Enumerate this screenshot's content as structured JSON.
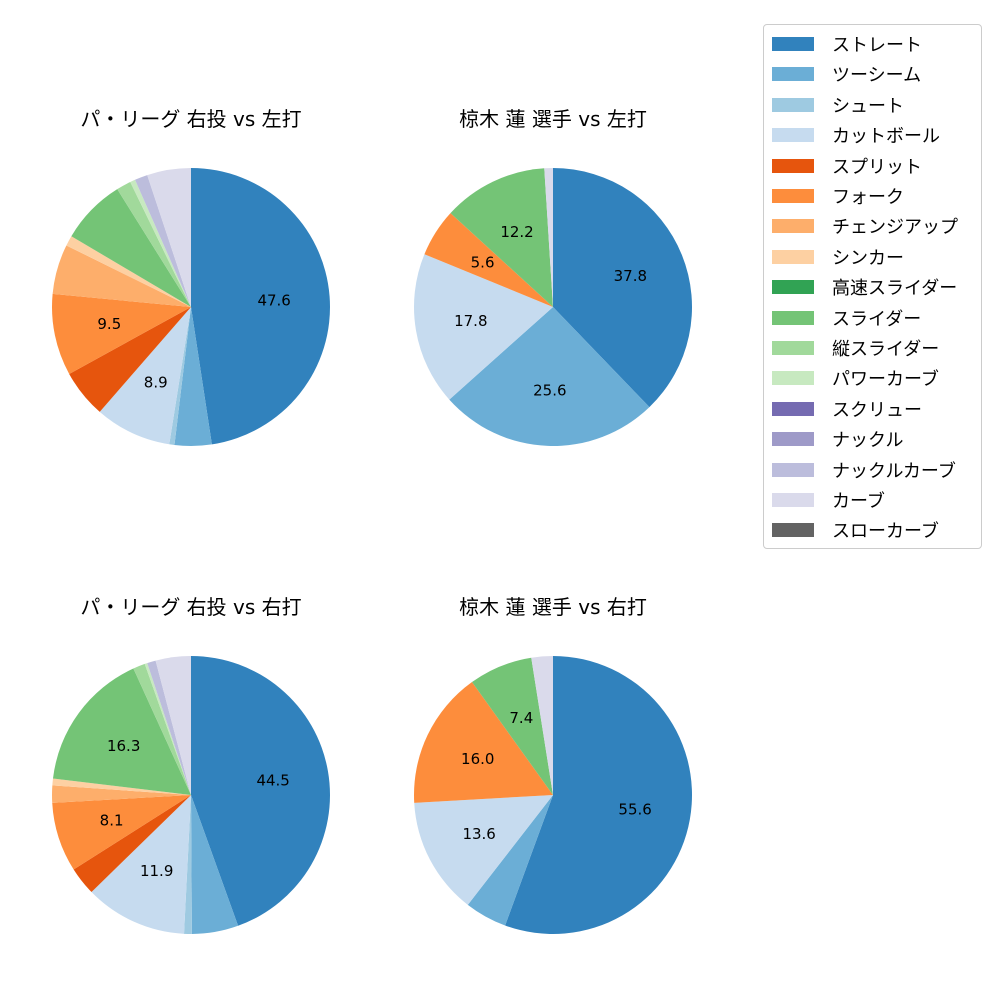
{
  "chart_data": [
    {
      "type": "pie",
      "title": "パ・リーグ 右投 vs 左打",
      "categories": [
        "ストレート",
        "ツーシーム",
        "シュート",
        "カットボール",
        "スプリット",
        "フォーク",
        "チェンジアップ",
        "シンカー",
        "スライダー",
        "縦スライダー",
        "パワーカーブ",
        "ナックルカーブ",
        "カーブ"
      ],
      "values": [
        47.6,
        4.3,
        0.6,
        8.9,
        5.6,
        9.5,
        5.8,
        1.2,
        7.6,
        1.7,
        0.6,
        1.5,
        5.1
      ],
      "labels_shown": [
        "47.6",
        "8.9",
        "9.5"
      ]
    },
    {
      "type": "pie",
      "title": "椋木 蓮 選手 vs 左打",
      "categories": [
        "ストレート",
        "ツーシーム",
        "カットボール",
        "フォーク",
        "スライダー",
        "カーブ"
      ],
      "values": [
        37.8,
        25.6,
        17.8,
        5.6,
        12.2,
        1.0
      ],
      "labels_shown": [
        "37.8",
        "25.6",
        "17.8",
        "5.6",
        "12.2"
      ]
    },
    {
      "type": "pie",
      "title": "パ・リーグ 右投 vs 右打",
      "categories": [
        "ストレート",
        "ツーシーム",
        "シュート",
        "カットボール",
        "スプリット",
        "フォーク",
        "チェンジアップ",
        "シンカー",
        "スライダー",
        "縦スライダー",
        "パワーカーブ",
        "ナックルカーブ",
        "カーブ"
      ],
      "values": [
        44.5,
        5.4,
        0.9,
        11.9,
        3.3,
        8.1,
        2.0,
        0.8,
        16.3,
        1.4,
        0.3,
        1.0,
        4.1
      ],
      "labels_shown": [
        "44.5",
        "11.9",
        "8.1",
        "16.3"
      ]
    },
    {
      "type": "pie",
      "title": "椋木 蓮 選手 vs 右打",
      "categories": [
        "ストレート",
        "ツーシーム",
        "カットボール",
        "フォーク",
        "スライダー",
        "カーブ"
      ],
      "values": [
        55.6,
        4.9,
        13.6,
        16.0,
        7.4,
        2.5
      ],
      "labels_shown": [
        "55.6",
        "13.6",
        "16.0",
        "7.4"
      ]
    }
  ],
  "panels": [
    {
      "title": "パ・リーグ 右投 vs 左打"
    },
    {
      "title": "椋木 蓮 選手 vs 左打"
    },
    {
      "title": "パ・リーグ 右投 vs 右打"
    },
    {
      "title": "椋木 蓮 選手 vs 右打"
    }
  ],
  "legend": {
    "items": [
      {
        "label": "ストレート",
        "color": "#3182bd"
      },
      {
        "label": "ツーシーム",
        "color": "#6baed6"
      },
      {
        "label": "シュート",
        "color": "#9ecae1"
      },
      {
        "label": "カットボール",
        "color": "#c6dbef"
      },
      {
        "label": "スプリット",
        "color": "#e6550d"
      },
      {
        "label": "フォーク",
        "color": "#fd8d3c"
      },
      {
        "label": "チェンジアップ",
        "color": "#fdae6b"
      },
      {
        "label": "シンカー",
        "color": "#fdd0a2"
      },
      {
        "label": "高速スライダー",
        "color": "#31a354"
      },
      {
        "label": "スライダー",
        "color": "#74c476"
      },
      {
        "label": "縦スライダー",
        "color": "#a1d99b"
      },
      {
        "label": "パワーカーブ",
        "color": "#c7e9c0"
      },
      {
        "label": "スクリュー",
        "color": "#756bb1"
      },
      {
        "label": "ナックル",
        "color": "#9e9ac8"
      },
      {
        "label": "ナックルカーブ",
        "color": "#bcbddc"
      },
      {
        "label": "カーブ",
        "color": "#dadaeb"
      },
      {
        "label": "スローカーブ",
        "color": "#636363"
      }
    ]
  }
}
